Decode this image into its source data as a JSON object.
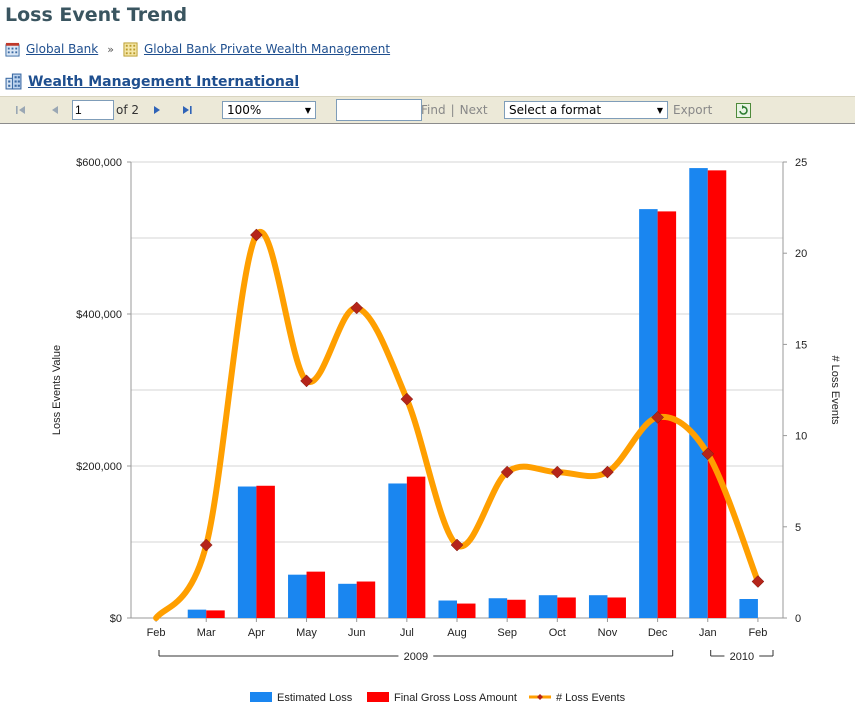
{
  "header": {
    "title": "Loss Event Trend"
  },
  "breadcrumb": {
    "items": [
      "Global Bank",
      "Global Bank Private Wealth Management"
    ],
    "separator": "»"
  },
  "subtitle": "Wealth Management International",
  "toolbar": {
    "page_value": "1",
    "page_of": "of 2",
    "zoom": "100%",
    "find_value": "",
    "find_label": "Find",
    "pipe": "|",
    "next_label": "Next",
    "format_select": "Select a format",
    "export_label": "Export"
  },
  "colors": {
    "estimated": "#1a86f0",
    "final": "#ff0000",
    "line": "#ff9f00",
    "marker": "#b5251a",
    "title": "#3a5560",
    "link": "#1f4f8f"
  },
  "chart_data": {
    "type": "bar",
    "categories": [
      "Feb",
      "Mar",
      "Apr",
      "May",
      "Jun",
      "Jul",
      "Aug",
      "Sep",
      "Oct",
      "Nov",
      "Dec",
      "Jan",
      "Feb"
    ],
    "year_groups": [
      {
        "label": "2009",
        "from": 0,
        "to": 10
      },
      {
        "label": "2010",
        "from": 11,
        "to": 12
      }
    ],
    "series": [
      {
        "name": "Estimated Loss",
        "axis": "left",
        "values": [
          0,
          11000,
          173000,
          57000,
          45000,
          177000,
          23000,
          26000,
          30000,
          30000,
          538000,
          592000,
          25000
        ]
      },
      {
        "name": "Final Gross Loss Amount",
        "axis": "left",
        "values": [
          0,
          10000,
          174000,
          61000,
          48000,
          186000,
          19000,
          24000,
          27000,
          27000,
          535000,
          589000,
          0
        ]
      },
      {
        "name": "# Loss Events",
        "axis": "right",
        "kind": "line",
        "values": [
          0,
          4,
          21,
          13,
          17,
          12,
          4,
          8,
          8,
          8,
          11,
          9,
          2
        ]
      }
    ],
    "ylabel": "Loss Events Value",
    "ylabel_right": "# Loss Events",
    "ylim": [
      0,
      600000
    ],
    "ylim_right": [
      0,
      25
    ],
    "yticks": [
      "$0",
      "$200,000",
      "$400,000",
      "$600,000"
    ],
    "yticks_right": [
      "0",
      "5",
      "10",
      "15",
      "20",
      "25"
    ],
    "grid": true,
    "legend": "bottom-center"
  }
}
